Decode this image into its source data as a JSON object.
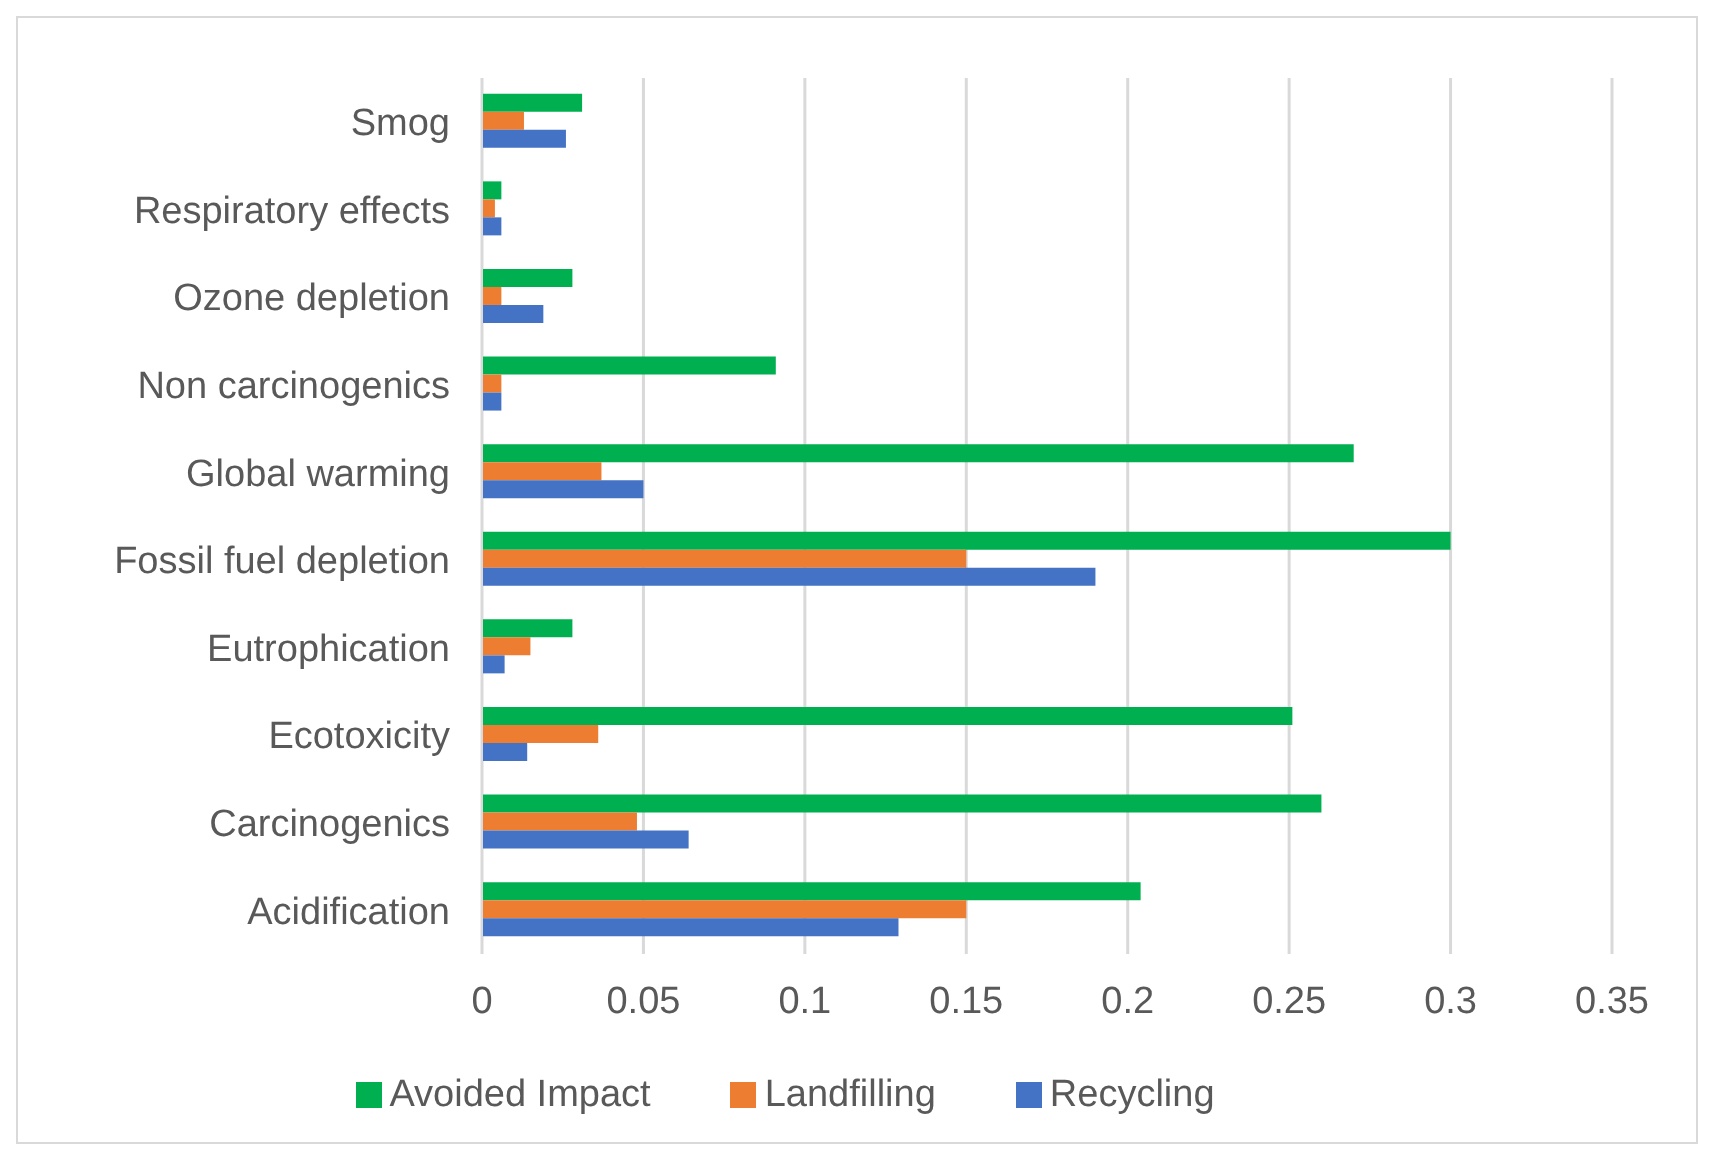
{
  "chart_data": {
    "type": "bar",
    "orientation": "horizontal",
    "categories": [
      "Smog",
      "Respiratory effects",
      "Ozone depletion",
      "Non carcinogenics",
      "Global warming",
      "Fossil fuel depletion",
      "Eutrophication",
      "Ecotoxicity",
      "Carcinogenics",
      "Acidification"
    ],
    "series": [
      {
        "name": "Avoided Impact",
        "color": "#00b050",
        "values": [
          0.031,
          0.006,
          0.028,
          0.091,
          0.27,
          0.3,
          0.028,
          0.251,
          0.26,
          0.204
        ]
      },
      {
        "name": "Landfilling",
        "color": "#ed7d31",
        "values": [
          0.013,
          0.004,
          0.006,
          0.006,
          0.037,
          0.15,
          0.015,
          0.036,
          0.048,
          0.15
        ]
      },
      {
        "name": "Recycling",
        "color": "#4472c4",
        "values": [
          0.026,
          0.006,
          0.019,
          0.006,
          0.05,
          0.19,
          0.007,
          0.014,
          0.064,
          0.129
        ]
      }
    ],
    "xlim": [
      0,
      0.35
    ],
    "xticks": [
      0,
      0.05,
      0.1,
      0.15,
      0.2,
      0.25,
      0.3,
      0.35
    ],
    "grid": "x",
    "legend": "bottom"
  }
}
